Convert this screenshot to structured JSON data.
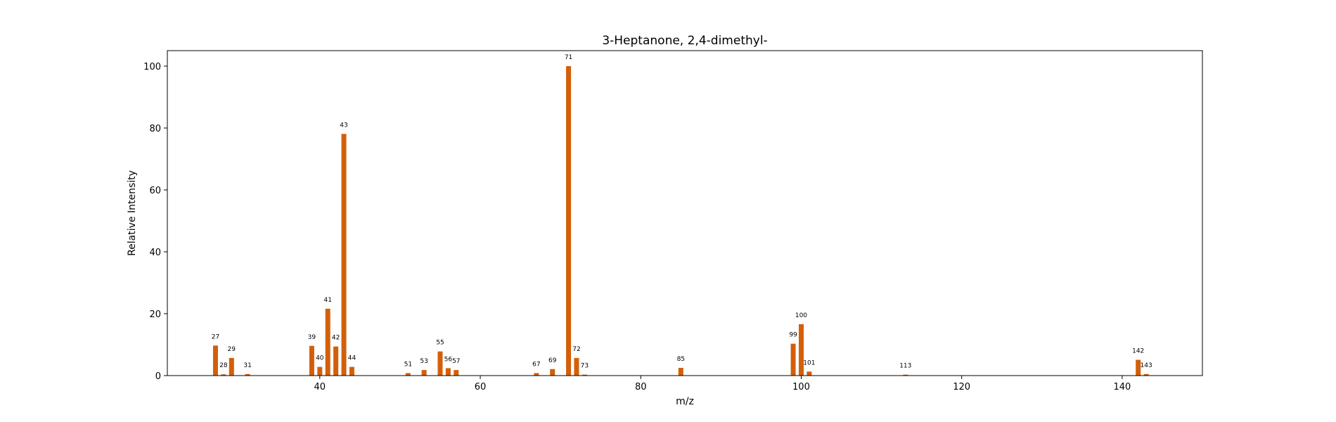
{
  "chart_data": {
    "type": "bar",
    "title": "3-Heptanone, 2,4-dimethyl-",
    "xlabel": "m/z",
    "ylabel": "Relative Intensity",
    "xlim": [
      21,
      150
    ],
    "ylim": [
      0,
      105
    ],
    "xticks": [
      40,
      60,
      80,
      100,
      120,
      140
    ],
    "yticks": [
      0,
      20,
      40,
      60,
      80,
      100
    ],
    "grid": false,
    "bar_color": "#d35f0a",
    "x": [
      27,
      28,
      29,
      31,
      39,
      40,
      41,
      42,
      43,
      44,
      51,
      53,
      55,
      56,
      57,
      67,
      69,
      71,
      72,
      73,
      85,
      99,
      100,
      101,
      113,
      142,
      143
    ],
    "values": [
      9.7,
      0.4,
      5.7,
      0.5,
      9.6,
      2.8,
      21.6,
      9.4,
      78.1,
      2.8,
      0.8,
      1.8,
      7.8,
      2.4,
      1.8,
      0.8,
      2.1,
      100.0,
      5.7,
      0.3,
      2.5,
      10.3,
      16.6,
      1.3,
      0.3,
      5.1,
      0.5
    ],
    "peak_labels": [
      "27",
      "28",
      "29",
      "31",
      "39",
      "40",
      "41",
      "42",
      "43",
      "44",
      "51",
      "53",
      "55",
      "56",
      "57",
      "67",
      "69",
      "71",
      "72",
      "73",
      "85",
      "99",
      "100",
      "101",
      "113",
      "142",
      "143"
    ]
  }
}
